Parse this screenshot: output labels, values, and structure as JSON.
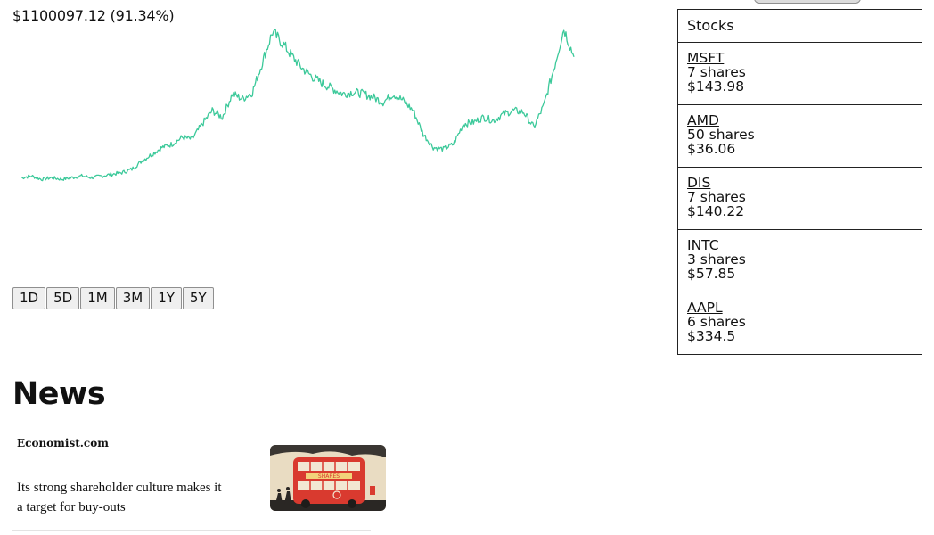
{
  "portfolio": {
    "value_text": "$1100097.12 (91.34%)"
  },
  "chart_data": {
    "type": "line",
    "series": [
      {
        "color": "#3cc99a",
        "values": [
          0.1,
          0.11,
          0.09,
          0.1,
          0.09,
          0.1,
          0.11,
          0.1,
          0.11,
          0.12,
          0.13,
          0.15,
          0.2,
          0.24,
          0.28,
          0.3,
          0.34,
          0.33,
          0.42,
          0.5,
          0.46,
          0.6,
          0.57,
          0.61,
          0.79,
          0.97,
          0.9,
          0.82,
          0.75,
          0.7,
          0.66,
          0.63,
          0.6,
          0.61,
          0.6,
          0.58,
          0.55,
          0.6,
          0.56,
          0.5,
          0.36,
          0.28,
          0.27,
          0.3,
          0.42,
          0.43,
          0.46,
          0.44,
          0.48,
          0.5,
          0.49,
          0.4,
          0.53,
          0.75,
          0.99,
          0.82
        ]
      }
    ],
    "ylim": [
      0,
      1
    ],
    "grid": false,
    "legend": "none"
  },
  "ranges": [
    "1D",
    "5D",
    "1M",
    "3M",
    "1Y",
    "5Y"
  ],
  "stocks": {
    "header": "Stocks",
    "items": [
      {
        "ticker": "MSFT",
        "shares": "7 shares",
        "price": "$143.98"
      },
      {
        "ticker": "AMD",
        "shares": "50 shares",
        "price": "$36.06"
      },
      {
        "ticker": "DIS",
        "shares": "7 shares",
        "price": "$140.22"
      },
      {
        "ticker": "INTC",
        "shares": "3 shares",
        "price": "$57.85"
      },
      {
        "ticker": "AAPL",
        "shares": "6 shares",
        "price": "$334.5"
      }
    ]
  },
  "news": {
    "heading": "News",
    "items": [
      {
        "source": "Economist.com",
        "text": "Its strong shareholder culture makes it a target for buy-outs",
        "image_icon": "red-double-decker-bus-illustration",
        "image_banner": "SHARES"
      }
    ]
  }
}
